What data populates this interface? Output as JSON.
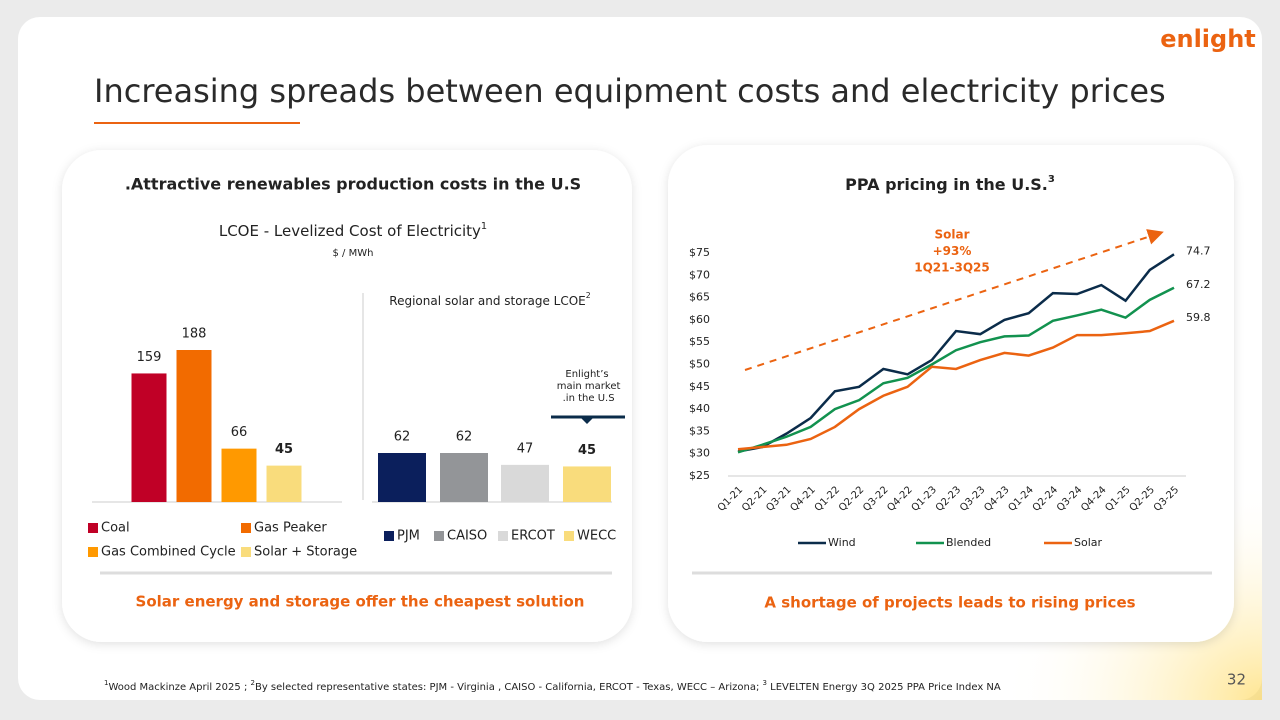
{
  "slide": {
    "logo": "enlight",
    "title": "Increasing spreads between equipment costs and electricity prices",
    "page_number": 32,
    "left_panel": {
      "header": ".Attractive renewables production costs in the U.S",
      "caption": "Solar energy and storage offer the cheapest solution"
    },
    "right_panel": {
      "header": "PPA pricing in the U.S.",
      "header_note": "3",
      "caption": "A shortage of projects leads to rising prices"
    },
    "footnote": [
      {
        "note": "1",
        "text": "Wood Mackinze April 2025 ; "
      },
      {
        "note": "2",
        "text": "By selected representative states: PJM - Virginia , CAISO - California, ERCOT - Texas, WECC – Arizona; "
      },
      {
        "note": "3",
        "text": " LEVELTEN Energy 3Q 2025 PPA Price Index NA"
      }
    ]
  },
  "chart_data": [
    {
      "type": "bar",
      "title": "LCOE - Levelized Cost of Electricity",
      "title_note": "1",
      "subtitle": "$ / MWh",
      "categories": [
        "Coal",
        "Gas Peaker",
        "Gas Combined Cycle",
        "Solar + Storage"
      ],
      "values": [
        159,
        188,
        66,
        45
      ],
      "colors": [
        "#c00026",
        "#f26b00",
        "#ff9900",
        "#f9dc7c"
      ]
    },
    {
      "type": "bar",
      "title": "Regional solar and storage LCOE",
      "title_note": "2",
      "annotation": "Enlight’s main market .in the U.S",
      "categories": [
        "PJM",
        "CAISO",
        "ERCOT",
        "WECC"
      ],
      "values": [
        62,
        62,
        47,
        45
      ],
      "colors": [
        "#0b1f5c",
        "#939598",
        "#d9d9d9",
        "#f9dc7c"
      ]
    },
    {
      "type": "line",
      "annotation": [
        "Solar",
        "+93%",
        "1Q21-3Q25"
      ],
      "categories": [
        "Q1-21",
        "Q2-21",
        "Q3-21",
        "Q4-21",
        "Q1-22",
        "Q2-22",
        "Q3-22",
        "Q4-22",
        "Q1-23",
        "Q2-23",
        "Q3-23",
        "Q4-23",
        "Q1-24",
        "Q2-24",
        "Q3-24",
        "Q4-24",
        "Q1-25",
        "Q2-25",
        "Q3-25"
      ],
      "series": [
        {
          "name": "Wind",
          "color": "#0b2c4a",
          "values": [
            30.5,
            31.5,
            34.5,
            38,
            44,
            45,
            49,
            47.8,
            51,
            57.5,
            56.8,
            60,
            61.5,
            66,
            65.8,
            67.8,
            64.3,
            71.2,
            74.7
          ]
        },
        {
          "name": "Blended",
          "color": "#12924f",
          "values": [
            30.3,
            32,
            33.8,
            36,
            40,
            42,
            45.8,
            47,
            50,
            53.2,
            55,
            56.3,
            56.5,
            59.8,
            61,
            62.3,
            60.5,
            64.5,
            67.2
          ]
        },
        {
          "name": "Solar",
          "color": "#eb6311",
          "values": [
            31,
            31.5,
            32,
            33.3,
            36,
            40,
            43,
            45,
            49.5,
            49,
            51,
            52.6,
            52,
            53.8,
            56.6,
            56.6,
            57,
            57.5,
            59.8
          ]
        }
      ],
      "ylim": [
        25,
        75
      ],
      "yticks": [
        {
          "value": 25,
          "label": "$25"
        },
        {
          "value": 30,
          "label": "$30"
        },
        {
          "value": 35,
          "label": "$35"
        },
        {
          "value": 40,
          "label": "$40"
        },
        {
          "value": 45,
          "label": "$45"
        },
        {
          "value": 50,
          "label": "$50"
        },
        {
          "value": 55,
          "label": "$55"
        },
        {
          "value": 60,
          "label": "$60"
        },
        {
          "value": 65,
          "label": "$65"
        },
        {
          "value": 70,
          "label": "$70"
        },
        {
          "value": 75,
          "label": "$75"
        }
      ]
    }
  ]
}
